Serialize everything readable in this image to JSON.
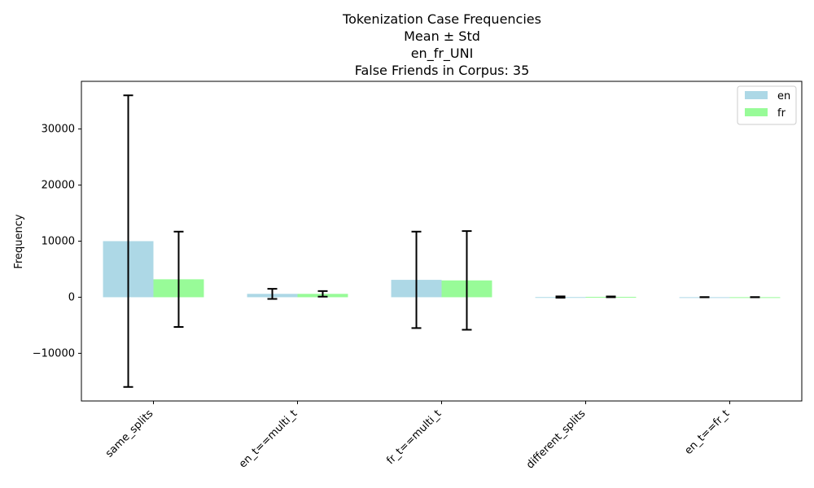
{
  "chart_data": {
    "type": "bar",
    "title_lines": [
      "Tokenization Case Frequencies",
      "Mean ± Std",
      "en_fr_UNI",
      "False Friends in Corpus: 35"
    ],
    "xlabel": "",
    "ylabel": "Frequency",
    "categories": [
      "same_splits",
      "en_t==multi_t",
      "fr_t==multi_t",
      "different_splits",
      "en_t==fr_t"
    ],
    "series": [
      {
        "name": "en",
        "color": "#add8e6",
        "values": [
          10000,
          600,
          3100,
          30,
          10
        ],
        "std": [
          26000,
          900,
          8600,
          120,
          20
        ]
      },
      {
        "name": "fr",
        "color": "#98fb98",
        "values": [
          3200,
          600,
          3000,
          70,
          10
        ],
        "std": [
          8500,
          500,
          8800,
          70,
          20
        ]
      }
    ],
    "ylim": [
      -18500,
      38500
    ],
    "yticks": [
      -10000,
      0,
      10000,
      20000,
      30000
    ],
    "ytick_labels": [
      "−10000",
      "0",
      "10000",
      "20000",
      "30000"
    ],
    "grid": false,
    "legend_position": "top-right"
  }
}
